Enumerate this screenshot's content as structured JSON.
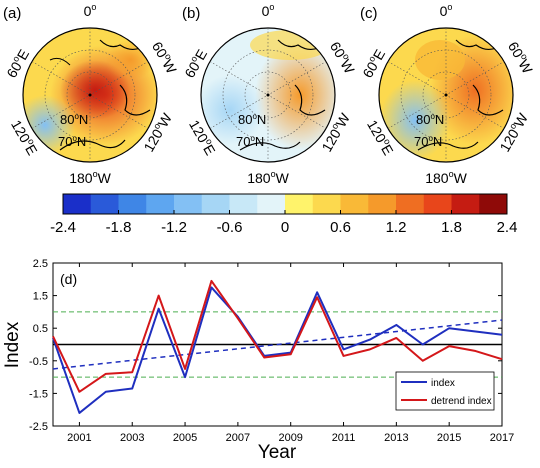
{
  "maps": [
    {
      "label": "(a)",
      "top": "0",
      "top_sup": "o",
      "left": "60",
      "left_sup": "o",
      "left_suffix": "E",
      "right": "60",
      "right_sup": "o",
      "right_suffix": "W",
      "lower_left": "120",
      "lower_left_sup": "o",
      "lower_left_suffix": "E",
      "lower_right": "120",
      "lower_right_sup": "o",
      "lower_right_suffix": "W",
      "bottom": "180",
      "bottom_sup": "o",
      "bottom_suffix": "W",
      "lat80": "80",
      "lat80_sup": "o",
      "lat80_suffix": "N",
      "lat70": "70",
      "lat70_sup": "o",
      "lat70_suffix": "N"
    },
    {
      "label": "(b)",
      "top": "0",
      "top_sup": "o",
      "left": "60",
      "left_sup": "o",
      "left_suffix": "E",
      "right": "60",
      "right_sup": "o",
      "right_suffix": "W",
      "lower_left": "120",
      "lower_left_sup": "o",
      "lower_left_suffix": "E",
      "lower_right": "120",
      "lower_right_sup": "o",
      "lower_right_suffix": "W",
      "bottom": "180",
      "bottom_sup": "o",
      "bottom_suffix": "W",
      "lat80": "80",
      "lat80_sup": "o",
      "lat80_suffix": "N",
      "lat70": "70",
      "lat70_sup": "o",
      "lat70_suffix": "N"
    },
    {
      "label": "(c)",
      "top": "0",
      "top_sup": "o",
      "left": "60",
      "left_sup": "o",
      "left_suffix": "E",
      "right": "60",
      "right_sup": "o",
      "right_suffix": "W",
      "lower_left": "120",
      "lower_left_sup": "o",
      "lower_left_suffix": "E",
      "lower_right": "120",
      "lower_right_sup": "o",
      "lower_right_suffix": "W",
      "bottom": "180",
      "bottom_sup": "o",
      "bottom_suffix": "W",
      "lat80": "80",
      "lat80_sup": "o",
      "lat80_suffix": "N",
      "lat70": "70",
      "lat70_sup": "o",
      "lat70_suffix": "N"
    }
  ],
  "colorbar": {
    "colors": [
      "#1a2fc9",
      "#2a5ad9",
      "#3f86e6",
      "#5ea6f0",
      "#83c0f4",
      "#a6d6f5",
      "#c8e8f7",
      "#e3f4f9",
      "#fff36b",
      "#fcd94e",
      "#f9b937",
      "#f59a2b",
      "#ef6e22",
      "#e8461b",
      "#c51c12",
      "#8f0a08"
    ],
    "tick_labels": [
      "-2.4",
      "-1.8",
      "-1.2",
      "-0.6",
      "0",
      "0.6",
      "1.2",
      "1.8",
      "2.4"
    ]
  },
  "chart_data": {
    "type": "line",
    "panel_label": "(d)",
    "xlabel": "Year",
    "ylabel": "Index",
    "xlim": [
      2000,
      2017
    ],
    "ylim": [
      -2.5,
      2.5
    ],
    "x_ticks": [
      2001,
      2003,
      2005,
      2007,
      2009,
      2011,
      2013,
      2015,
      2017
    ],
    "y_ticks": [
      "-2.5",
      "-1.5",
      "-0.5",
      "0.5",
      "1.5",
      "2.5"
    ],
    "y_tick_values": [
      -2.5,
      -1.5,
      -0.5,
      0.5,
      1.5,
      2.5
    ],
    "x": [
      2000,
      2001,
      2002,
      2003,
      2004,
      2005,
      2006,
      2007,
      2008,
      2009,
      2010,
      2011,
      2012,
      2013,
      2014,
      2015,
      2016,
      2017
    ],
    "series": [
      {
        "name": "index",
        "color": "#1f2fbf",
        "values": [
          0.2,
          -2.1,
          -1.45,
          -1.35,
          1.1,
          -1.0,
          1.75,
          0.85,
          -0.35,
          -0.25,
          1.6,
          -0.15,
          0.15,
          0.6,
          0.0,
          0.5,
          0.4,
          0.3
        ]
      },
      {
        "name": "detrend index",
        "color": "#d4171a",
        "values": [
          0.25,
          -1.45,
          -0.9,
          -0.85,
          1.5,
          -0.75,
          1.95,
          0.8,
          -0.4,
          -0.3,
          1.45,
          -0.35,
          -0.15,
          0.2,
          -0.5,
          -0.05,
          -0.2,
          -0.45
        ]
      }
    ],
    "trend_line": {
      "color": "#1f2fbf",
      "style": "dashed",
      "from": [
        2000,
        -0.75
      ],
      "to": [
        2017,
        0.75
      ]
    },
    "reference_lines": [
      {
        "y": 0,
        "color": "#000000",
        "style": "solid"
      },
      {
        "y": 1,
        "color": "#4caf50",
        "style": "dashed"
      },
      {
        "y": -1,
        "color": "#4caf50",
        "style": "dashed"
      }
    ],
    "legend_position": "bottom-right"
  }
}
